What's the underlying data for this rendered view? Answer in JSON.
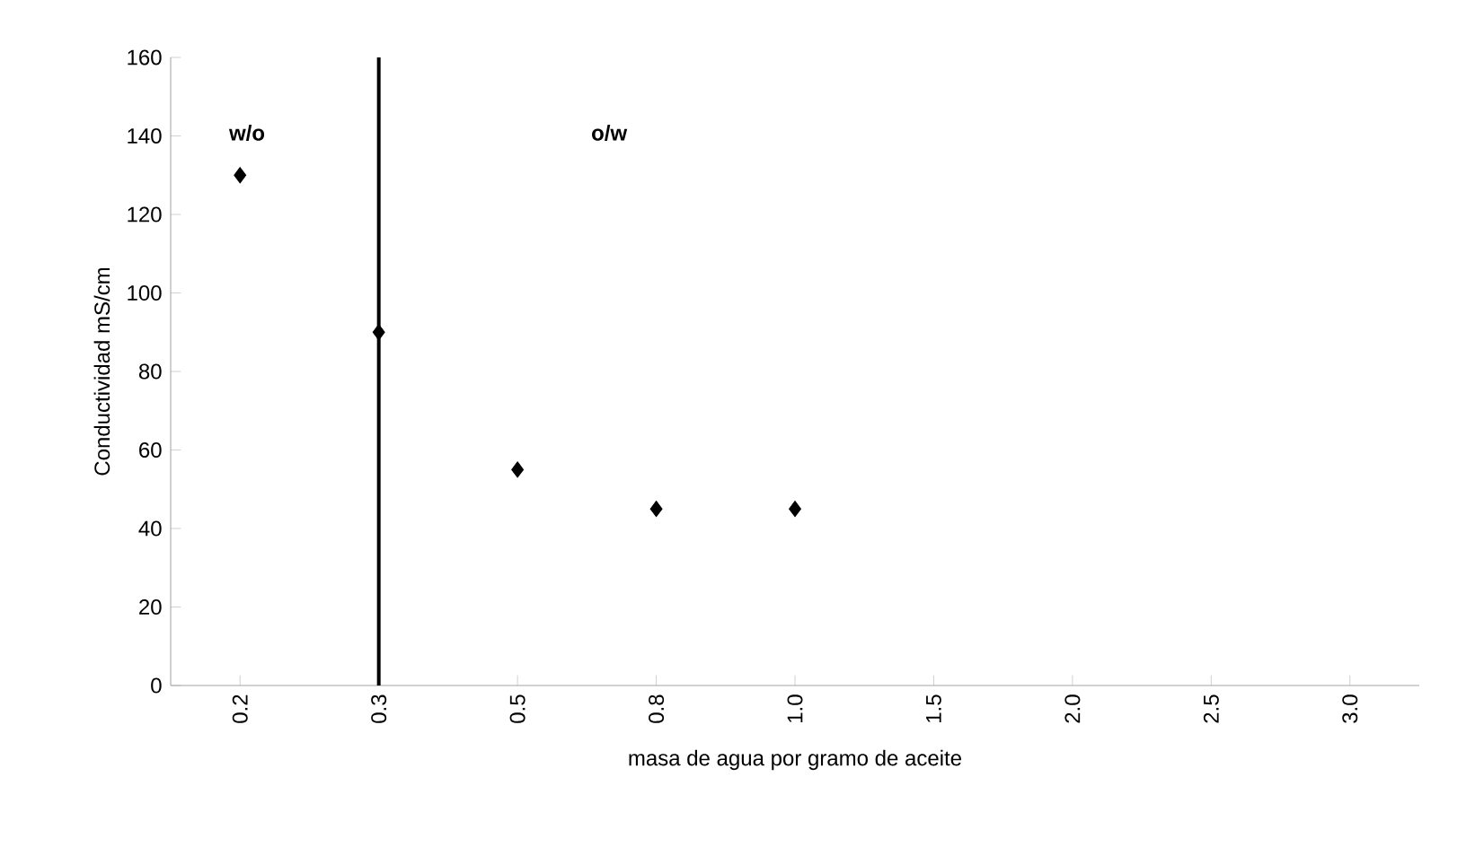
{
  "chart_data": {
    "type": "scatter",
    "xlabel": "masa de agua por gramo de aceite",
    "ylabel": "Conductividad mS/cm",
    "categories": [
      "0.2",
      "0.3",
      "0.5",
      "0.8",
      "1.0",
      "1.5",
      "2.0",
      "2.5",
      "3.0"
    ],
    "values": [
      130,
      90,
      55,
      45,
      45,
      null,
      null,
      null,
      null
    ],
    "color": "#000000",
    "marker": "diamond",
    "ylim": [
      0,
      160
    ],
    "yticks": [
      0,
      20,
      40,
      60,
      80,
      100,
      120,
      140,
      160
    ],
    "ref_lines": [
      {
        "axis": "x",
        "value": "0.3",
        "color": "#000000"
      }
    ],
    "annotations": [
      "w/o",
      "o/w"
    ]
  }
}
